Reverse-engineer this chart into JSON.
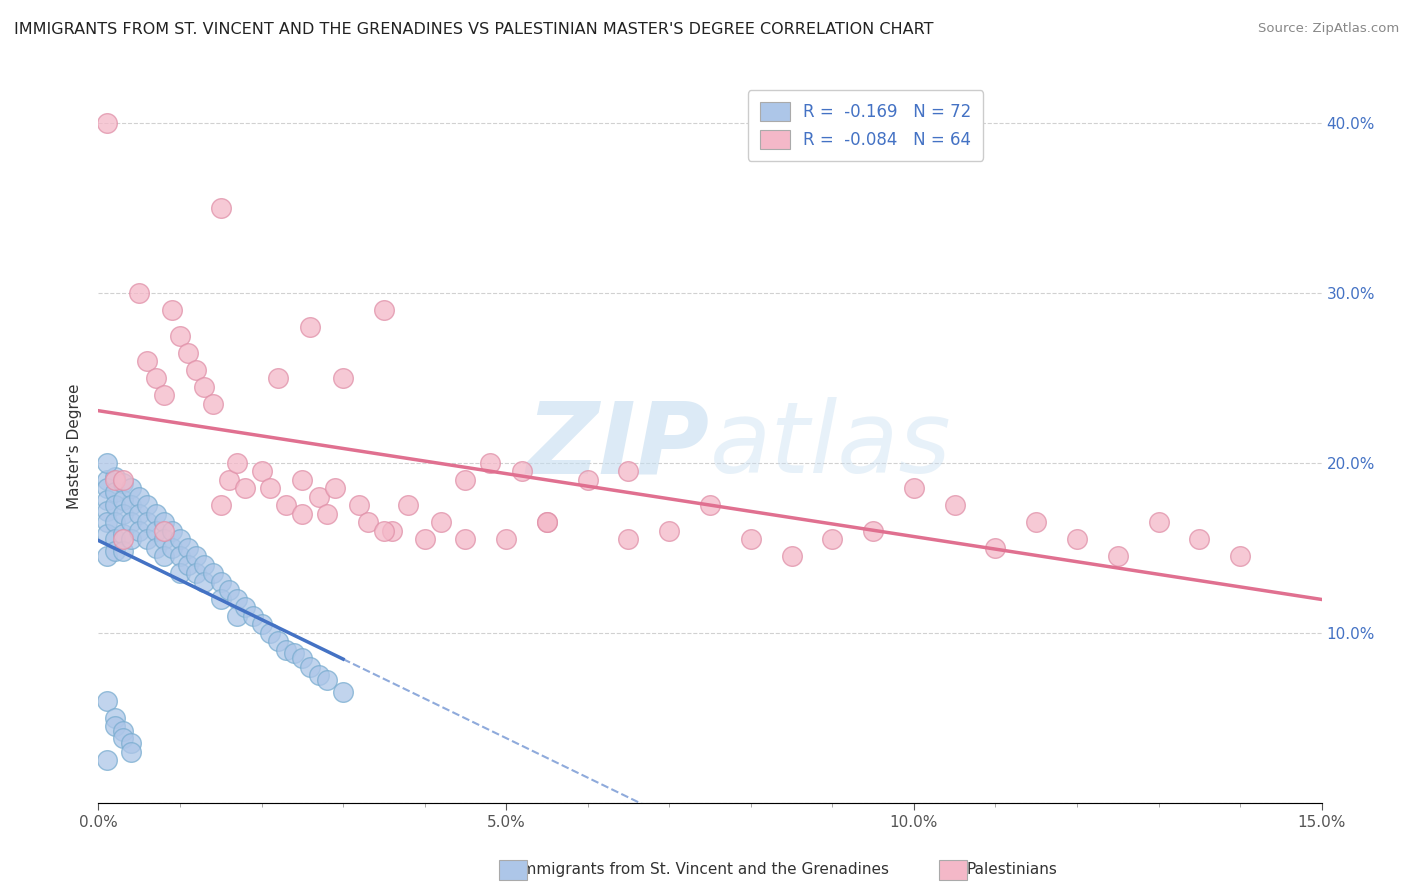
{
  "title": "IMMIGRANTS FROM ST. VINCENT AND THE GRENADINES VS PALESTINIAN MASTER'S DEGREE CORRELATION CHART",
  "source": "Source: ZipAtlas.com",
  "xlabel_blue": "Immigrants from St. Vincent and the Grenadines",
  "xlabel_pink": "Palestinians",
  "ylabel": "Master's Degree",
  "legend_blue_R": "-0.169",
  "legend_blue_N": "72",
  "legend_pink_R": "-0.084",
  "legend_pink_N": "64",
  "xlim": [
    0.0,
    0.15
  ],
  "ylim": [
    0.0,
    0.42
  ],
  "blue_color": "#adc6e8",
  "blue_line_color": "#4472c4",
  "pink_color": "#f4b8c8",
  "pink_line_color": "#e07090",
  "blue_scatter_edge": "#7aadd0",
  "pink_scatter_edge": "#e090a8",
  "watermark_color": "#d0e5f5",
  "background_color": "#ffffff",
  "grid_color": "#cccccc",
  "right_ytick_color": "#4472c4",
  "blue_points_x": [
    0.001,
    0.001,
    0.001,
    0.001,
    0.001,
    0.001,
    0.001,
    0.002,
    0.002,
    0.002,
    0.002,
    0.002,
    0.002,
    0.003,
    0.003,
    0.003,
    0.003,
    0.003,
    0.004,
    0.004,
    0.004,
    0.004,
    0.005,
    0.005,
    0.005,
    0.006,
    0.006,
    0.006,
    0.007,
    0.007,
    0.007,
    0.008,
    0.008,
    0.008,
    0.009,
    0.009,
    0.01,
    0.01,
    0.01,
    0.011,
    0.011,
    0.012,
    0.012,
    0.013,
    0.013,
    0.014,
    0.015,
    0.015,
    0.016,
    0.017,
    0.017,
    0.018,
    0.019,
    0.02,
    0.021,
    0.022,
    0.023,
    0.024,
    0.025,
    0.026,
    0.027,
    0.028,
    0.03,
    0.001,
    0.001,
    0.002,
    0.002,
    0.003,
    0.003,
    0.004,
    0.004,
    0.001
  ],
  "blue_points_y": [
    0.19,
    0.185,
    0.178,
    0.172,
    0.165,
    0.158,
    0.145,
    0.192,
    0.183,
    0.175,
    0.165,
    0.155,
    0.148,
    0.188,
    0.178,
    0.17,
    0.158,
    0.148,
    0.185,
    0.175,
    0.165,
    0.155,
    0.18,
    0.17,
    0.16,
    0.175,
    0.165,
    0.155,
    0.17,
    0.16,
    0.15,
    0.165,
    0.155,
    0.145,
    0.16,
    0.15,
    0.155,
    0.145,
    0.135,
    0.15,
    0.14,
    0.145,
    0.135,
    0.14,
    0.13,
    0.135,
    0.13,
    0.12,
    0.125,
    0.12,
    0.11,
    0.115,
    0.11,
    0.105,
    0.1,
    0.095,
    0.09,
    0.088,
    0.085,
    0.08,
    0.075,
    0.072,
    0.065,
    0.2,
    0.06,
    0.05,
    0.045,
    0.042,
    0.038,
    0.035,
    0.03,
    0.025
  ],
  "pink_points_x": [
    0.001,
    0.002,
    0.003,
    0.005,
    0.006,
    0.007,
    0.008,
    0.009,
    0.01,
    0.011,
    0.012,
    0.013,
    0.014,
    0.015,
    0.016,
    0.017,
    0.018,
    0.02,
    0.021,
    0.022,
    0.023,
    0.025,
    0.026,
    0.027,
    0.028,
    0.029,
    0.03,
    0.032,
    0.033,
    0.035,
    0.036,
    0.038,
    0.04,
    0.042,
    0.045,
    0.048,
    0.05,
    0.052,
    0.055,
    0.06,
    0.065,
    0.07,
    0.075,
    0.08,
    0.085,
    0.09,
    0.095,
    0.1,
    0.105,
    0.11,
    0.115,
    0.12,
    0.125,
    0.13,
    0.135,
    0.14,
    0.003,
    0.008,
    0.015,
    0.025,
    0.035,
    0.045,
    0.055,
    0.065
  ],
  "pink_points_y": [
    0.4,
    0.19,
    0.19,
    0.3,
    0.26,
    0.25,
    0.24,
    0.29,
    0.275,
    0.265,
    0.255,
    0.245,
    0.235,
    0.35,
    0.19,
    0.2,
    0.185,
    0.195,
    0.185,
    0.25,
    0.175,
    0.19,
    0.28,
    0.18,
    0.17,
    0.185,
    0.25,
    0.175,
    0.165,
    0.29,
    0.16,
    0.175,
    0.155,
    0.165,
    0.19,
    0.2,
    0.155,
    0.195,
    0.165,
    0.19,
    0.195,
    0.16,
    0.175,
    0.155,
    0.145,
    0.155,
    0.16,
    0.185,
    0.175,
    0.15,
    0.165,
    0.155,
    0.145,
    0.165,
    0.155,
    0.145,
    0.155,
    0.16,
    0.175,
    0.17,
    0.16,
    0.155,
    0.165,
    0.155
  ]
}
